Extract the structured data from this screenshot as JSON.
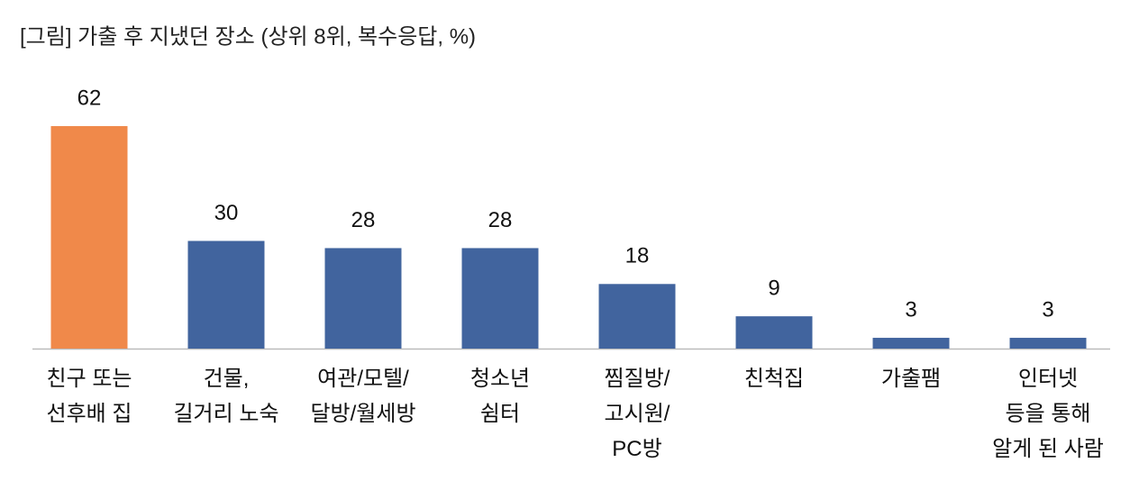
{
  "chart_data": {
    "type": "bar",
    "title": "[그림] 가출 후 지냈던 장소 (상위 8위, 복수응답, %)",
    "categories": [
      "친구 또는\n선후배 집",
      "건물,\n길거리 노숙",
      "여관/모텔/\n달방/월세방",
      "청소년\n쉼터",
      "찜질방/\n고시원/\nPC방",
      "친척집",
      "가출팸",
      "인터넷\n등을 통해\n알게 된 사람"
    ],
    "values": [
      62,
      30,
      28,
      28,
      18,
      9,
      3,
      3
    ],
    "colors": [
      "#f0894a",
      "#41649e",
      "#41649e",
      "#41649e",
      "#41649e",
      "#41649e",
      "#41649e",
      "#41649e"
    ],
    "grid": false
  }
}
